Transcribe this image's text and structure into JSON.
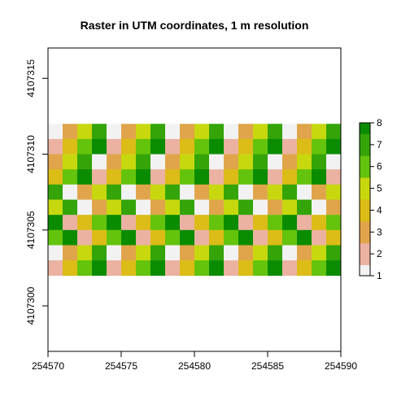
{
  "chart_data": {
    "type": "heatmap",
    "title": "Raster in UTM coordinates, 1 m resolution",
    "xlabel": "",
    "ylabel": "",
    "xlim": [
      254570,
      254590
    ],
    "ylim": [
      4107297,
      4107317
    ],
    "x_ticks": [
      254570,
      254575,
      254580,
      254585,
      254590
    ],
    "x_tick_labels": [
      "254570",
      "254575",
      "254580",
      "254585",
      "254590"
    ],
    "y_ticks": [
      4107300,
      4107305,
      4107310,
      4107315
    ],
    "y_tick_labels": [
      "4107300",
      "4107305",
      "4107310",
      "4107315"
    ],
    "raster_extent": {
      "xmin": 254570,
      "xmax": 254590,
      "ymin": 4107302,
      "ymax": 4107312
    },
    "ncols": 20,
    "nrows": 10,
    "values_rows_top_to_bottom": [
      [
        1,
        3,
        5,
        7,
        1,
        3,
        5,
        7,
        1,
        3,
        5,
        7,
        1,
        3,
        5,
        7,
        1,
        3,
        5,
        7
      ],
      [
        2,
        4,
        6,
        8,
        2,
        4,
        6,
        8,
        2,
        4,
        6,
        8,
        2,
        4,
        6,
        8,
        2,
        4,
        6,
        8
      ],
      [
        3,
        5,
        7,
        1,
        3,
        5,
        7,
        1,
        3,
        5,
        7,
        1,
        3,
        5,
        7,
        1,
        3,
        5,
        7,
        1
      ],
      [
        4,
        6,
        8,
        2,
        4,
        6,
        8,
        2,
        4,
        6,
        8,
        2,
        4,
        6,
        8,
        2,
        4,
        6,
        8,
        2
      ],
      [
        7,
        1,
        3,
        5,
        7,
        1,
        3,
        5,
        7,
        1,
        3,
        5,
        7,
        1,
        3,
        5,
        7,
        1,
        3,
        5
      ],
      [
        5,
        7,
        1,
        3,
        5,
        7,
        1,
        3,
        5,
        7,
        1,
        3,
        5,
        7,
        1,
        3,
        5,
        7,
        1,
        3
      ],
      [
        8,
        2,
        4,
        6,
        8,
        2,
        4,
        6,
        8,
        2,
        4,
        6,
        8,
        2,
        4,
        6,
        8,
        2,
        4,
        6
      ],
      [
        6,
        8,
        2,
        4,
        6,
        8,
        2,
        4,
        6,
        8,
        2,
        4,
        6,
        8,
        2,
        4,
        6,
        8,
        2,
        4
      ],
      [
        1,
        3,
        5,
        7,
        1,
        3,
        5,
        7,
        1,
        3,
        5,
        7,
        1,
        3,
        5,
        7,
        1,
        3,
        5,
        7
      ],
      [
        2,
        4,
        6,
        8,
        2,
        4,
        6,
        8,
        2,
        4,
        6,
        8,
        2,
        4,
        6,
        8,
        2,
        4,
        6,
        8
      ]
    ],
    "legend": {
      "placement": "right",
      "min": 1,
      "max": 8,
      "ticks": [
        1,
        2,
        3,
        4,
        5,
        6,
        7,
        8
      ],
      "tick_labels": [
        "1",
        "2",
        "3",
        "4",
        "5",
        "6",
        "7",
        "8"
      ]
    },
    "colors": {
      "1": "#f2f2f2",
      "2": "#ebb2a2",
      "3": "#e0a54a",
      "4": "#dcbc16",
      "5": "#c7d80f",
      "6": "#64c30c",
      "7": "#34a408",
      "8": "#0b8c00"
    },
    "grid": false
  }
}
